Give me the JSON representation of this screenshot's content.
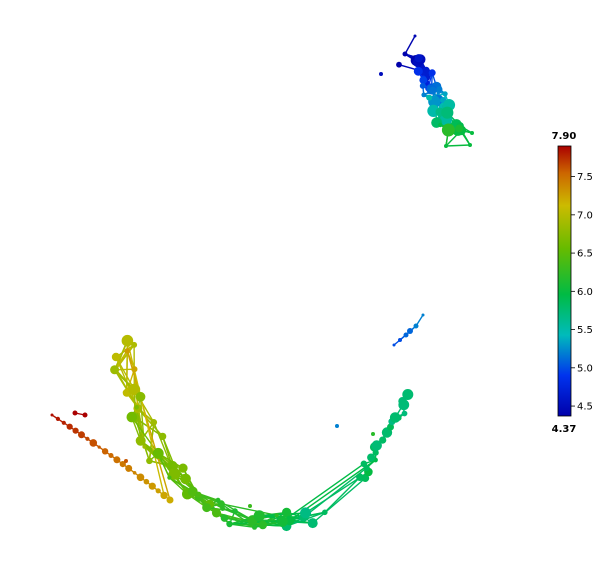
{
  "chart_data": {
    "type": "network graph",
    "title": "",
    "color_scale": {
      "name": "jet",
      "min_label": "4.37",
      "max_label": "7.90",
      "min": 4.37,
      "max": 7.9,
      "ticks": [
        {
          "value": 4.5,
          "label": "4.5"
        },
        {
          "value": 5.0,
          "label": "5.0"
        },
        {
          "value": 5.5,
          "label": "5.5"
        },
        {
          "value": 6.0,
          "label": "6.0"
        },
        {
          "value": 6.5,
          "label": "6.5"
        },
        {
          "value": 7.0,
          "label": "7.0"
        },
        {
          "value": 7.5,
          "label": "7.5"
        }
      ]
    }
  }
}
